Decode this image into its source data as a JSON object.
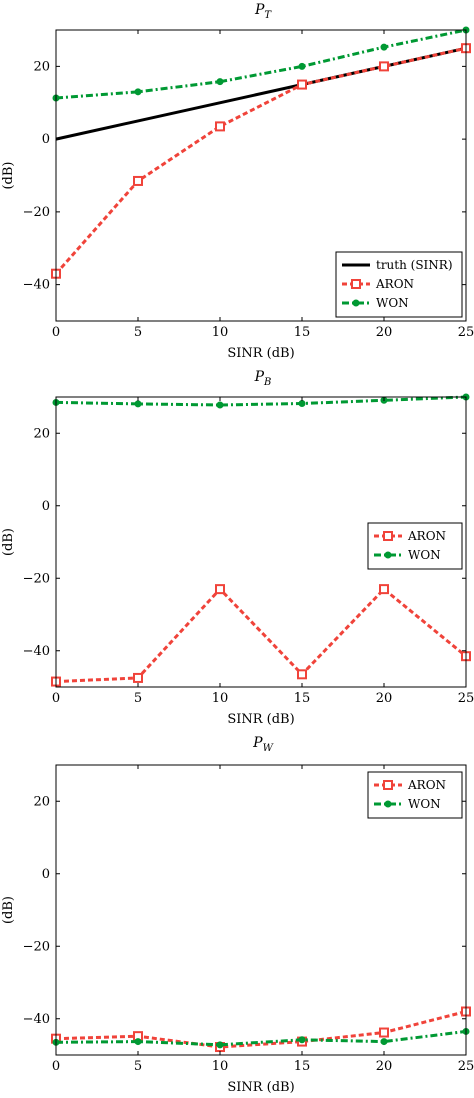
{
  "chart_data": [
    {
      "type": "line",
      "title": "P_T",
      "title_main": "P",
      "title_sub": "T",
      "xlabel": "SINR (dB)",
      "ylabel": "(dB)",
      "x": [
        0,
        5,
        10,
        15,
        20,
        25
      ],
      "xlim": [
        0,
        25
      ],
      "ylim": [
        -50,
        30
      ],
      "xticks": [
        "0",
        "5",
        "10",
        "15",
        "20",
        "25"
      ],
      "yticks": [
        "20",
        "0",
        "−20",
        "−40"
      ],
      "ytick_values": [
        20,
        0,
        -20,
        -40
      ],
      "legend_position": "bottom-right",
      "series": [
        {
          "name": "truth (SINR)",
          "color": "#000000",
          "style": "solid",
          "marker": "none",
          "x": [
            0,
            25
          ],
          "values": [
            0,
            25
          ]
        },
        {
          "name": "ARON",
          "color": "#f0433a",
          "style": "dashed",
          "marker": "square",
          "values": [
            -37,
            -11.5,
            3.5,
            15,
            20,
            25
          ]
        },
        {
          "name": "WON",
          "color": "#009933",
          "style": "dashdot",
          "marker": "circle",
          "values": [
            11.3,
            13,
            15.8,
            20,
            25.3,
            30
          ]
        }
      ]
    },
    {
      "type": "line",
      "title": "P_B",
      "title_main": "P",
      "title_sub": "B",
      "xlabel": "SINR (dB)",
      "ylabel": "(dB)",
      "x": [
        0,
        5,
        10,
        15,
        20,
        25
      ],
      "xlim": [
        0,
        25
      ],
      "ylim": [
        -50,
        30
      ],
      "xticks": [
        "0",
        "5",
        "10",
        "15",
        "20",
        "25"
      ],
      "yticks": [
        "20",
        "0",
        "−20",
        "−40"
      ],
      "ytick_values": [
        20,
        0,
        -20,
        -40
      ],
      "legend_position": "center-right",
      "series": [
        {
          "name": "ARON",
          "color": "#f0433a",
          "style": "dashed",
          "marker": "square",
          "values": [
            -48.5,
            -47.5,
            -23,
            -46.5,
            -23,
            -41.5
          ]
        },
        {
          "name": "WON",
          "color": "#009933",
          "style": "dashdot",
          "marker": "circle",
          "values": [
            28.5,
            28.1,
            27.8,
            28.2,
            29.1,
            30
          ]
        }
      ]
    },
    {
      "type": "line",
      "title": "P_W",
      "title_main": "P",
      "title_sub": "W",
      "xlabel": "SINR (dB)",
      "ylabel": "(dB)",
      "x": [
        0,
        5,
        10,
        15,
        20,
        25
      ],
      "xlim": [
        0,
        25
      ],
      "ylim": [
        -50,
        30
      ],
      "xticks": [
        "0",
        "5",
        "10",
        "15",
        "20",
        "25"
      ],
      "yticks": [
        "20",
        "0",
        "−20",
        "−40"
      ],
      "ytick_values": [
        20,
        0,
        -20,
        -40
      ],
      "legend_position": "top-right",
      "series": [
        {
          "name": "ARON",
          "color": "#f0433a",
          "style": "dashed",
          "marker": "square",
          "values": [
            -45.5,
            -44.8,
            -47.8,
            -46.3,
            -43.8,
            -38
          ]
        },
        {
          "name": "WON",
          "color": "#009933",
          "style": "dashdot",
          "marker": "circle",
          "values": [
            -46.5,
            -46.3,
            -47.2,
            -45.8,
            -46.3,
            -43.5
          ]
        }
      ]
    }
  ]
}
